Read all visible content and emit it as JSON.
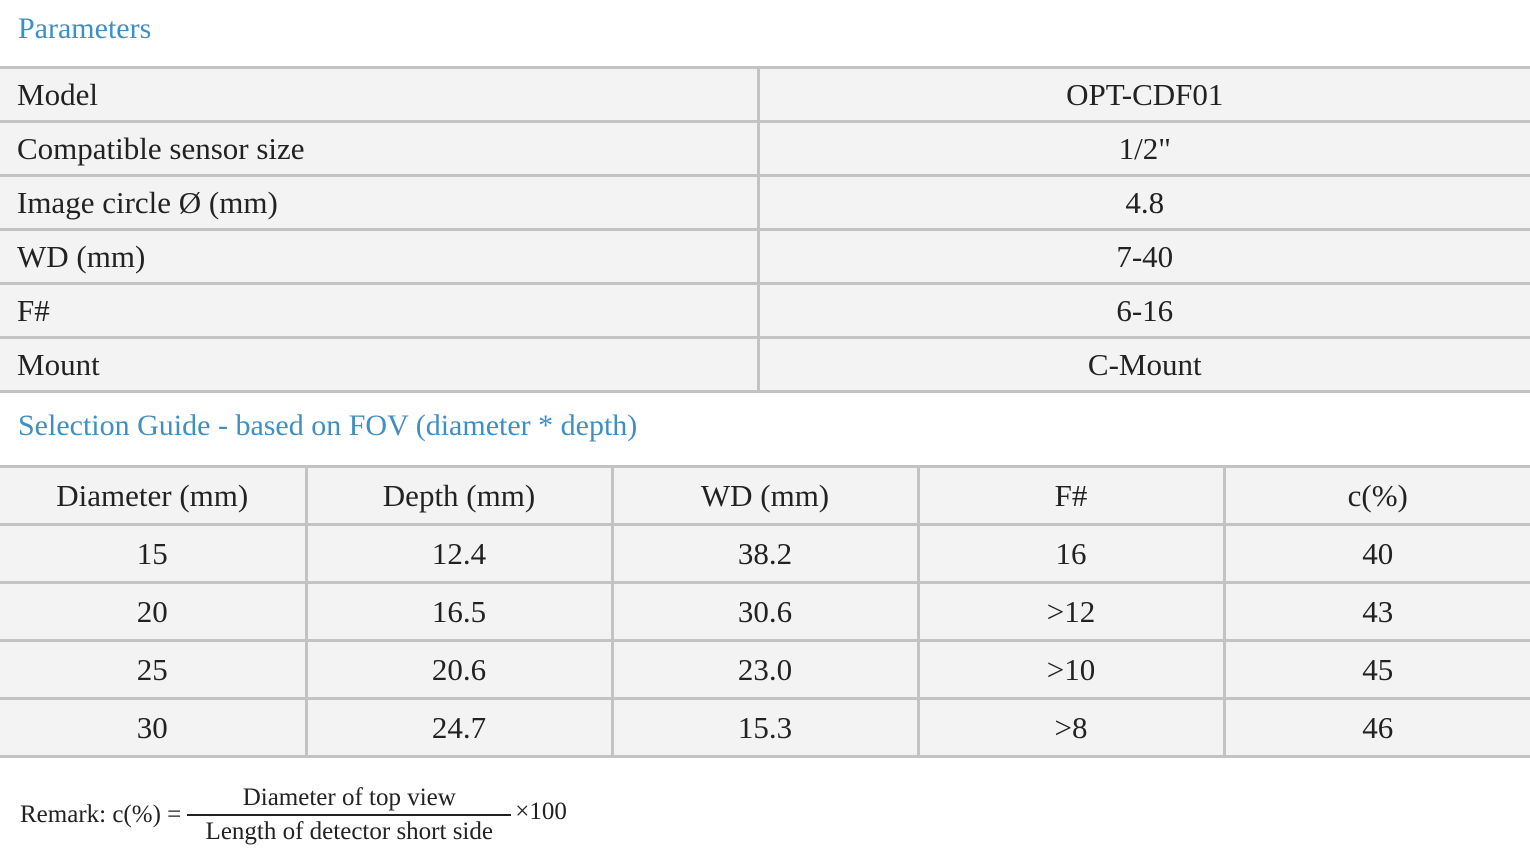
{
  "parameters": {
    "title": "Parameters",
    "rows": [
      {
        "label": "Model",
        "value": "OPT-CDF01"
      },
      {
        "label": "Compatible sensor size",
        "value": "1/2\""
      },
      {
        "label": "Image circle Ø (mm)",
        "value": "4.8"
      },
      {
        "label": "WD (mm)",
        "value": "7-40"
      },
      {
        "label": "F#",
        "value": "6-16"
      },
      {
        "label": "Mount",
        "value": "C-Mount"
      }
    ]
  },
  "selection_guide": {
    "title": "Selection Guide - based on FOV (diameter * depth)",
    "headers": [
      "Diameter (mm)",
      "Depth (mm)",
      "WD (mm)",
      "F#",
      "c(%)"
    ],
    "rows": [
      [
        "15",
        "12.4",
        "38.2",
        "16",
        "40"
      ],
      [
        "20",
        "16.5",
        "30.6",
        ">12",
        "43"
      ],
      [
        "25",
        "20.6",
        "23.0",
        ">10",
        "45"
      ],
      [
        "30",
        "24.7",
        "15.3",
        ">8",
        "46"
      ]
    ]
  },
  "remark": {
    "prefix": "Remark: c(%) =",
    "numerator": "Diameter of top view",
    "denominator": "Length of detector short side",
    "suffix": "×100"
  }
}
